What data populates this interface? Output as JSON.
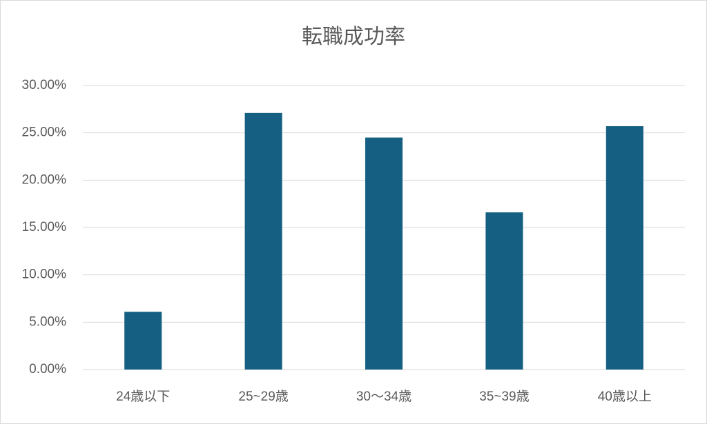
{
  "chart_data": {
    "type": "bar",
    "title": "転職成功率",
    "categories": [
      "24歳以下",
      "25~29歳",
      "30～34歳",
      "35~39歳",
      "40歳以上"
    ],
    "values": [
      6.1,
      27.1,
      24.5,
      16.6,
      25.7
    ],
    "color": "#155f82",
    "ylim": [
      0,
      30
    ],
    "yticks": [
      {
        "value": 0,
        "label": "0.00%"
      },
      {
        "value": 5,
        "label": "5.00%"
      },
      {
        "value": 10,
        "label": "10.00%"
      },
      {
        "value": 15,
        "label": "15.00%"
      },
      {
        "value": 20,
        "label": "20.00%"
      },
      {
        "value": 25,
        "label": "25.00%"
      },
      {
        "value": 30,
        "label": "30.00%"
      }
    ],
    "grid": true
  }
}
